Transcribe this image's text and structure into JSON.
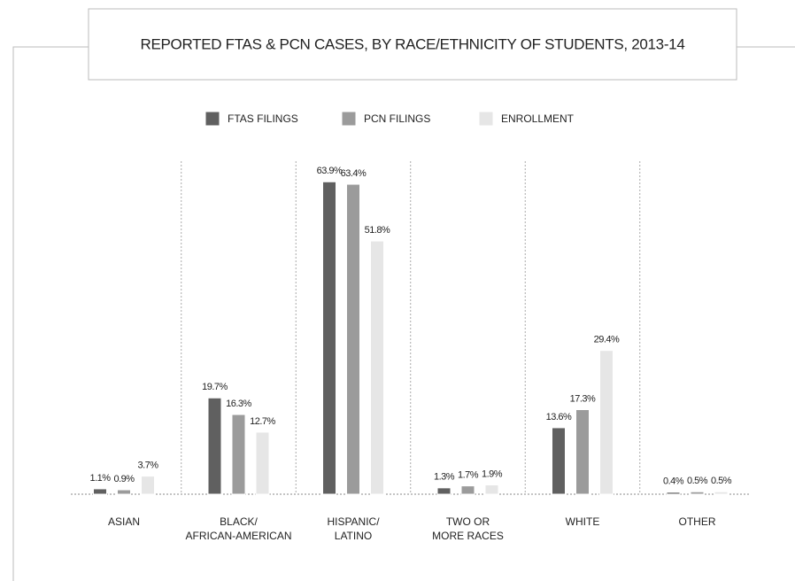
{
  "chart_data": {
    "type": "bar",
    "title": "REPORTED FTAS & PCN CASES, BY RACE/ETHNICITY OF STUDENTS, 2013-14",
    "categories": [
      "ASIAN",
      "BLACK/\nAFRICAN-AMERICAN",
      "HISPANIC/\nLATINO",
      "TWO OR\nMORE RACES",
      "WHITE",
      "OTHER"
    ],
    "series": [
      {
        "name": "FTAS FILINGS",
        "color": "#606060",
        "values": [
          1.1,
          19.7,
          63.9,
          1.3,
          13.6,
          0.4
        ],
        "value_labels": [
          "1.1%",
          "19.7%",
          "63.9%",
          "1.3%",
          "13.6%",
          "0.4%"
        ]
      },
      {
        "name": "PCN FILINGS",
        "color": "#9b9b9b",
        "values": [
          0.9,
          16.3,
          63.4,
          1.7,
          17.3,
          0.5
        ],
        "value_labels": [
          "0.9%",
          "16.3%",
          "63.4%",
          "1.7%",
          "17.3%",
          "0.5%"
        ]
      },
      {
        "name": "ENROLLMENT",
        "color": "#e6e6e6",
        "values": [
          3.7,
          12.7,
          51.8,
          1.9,
          29.4,
          0.5
        ],
        "value_labels": [
          "3.7%",
          "12.7%",
          "51.8%",
          "1.9%",
          "29.4%",
          "0.5%"
        ]
      }
    ],
    "ylim": [
      0,
      70
    ]
  }
}
